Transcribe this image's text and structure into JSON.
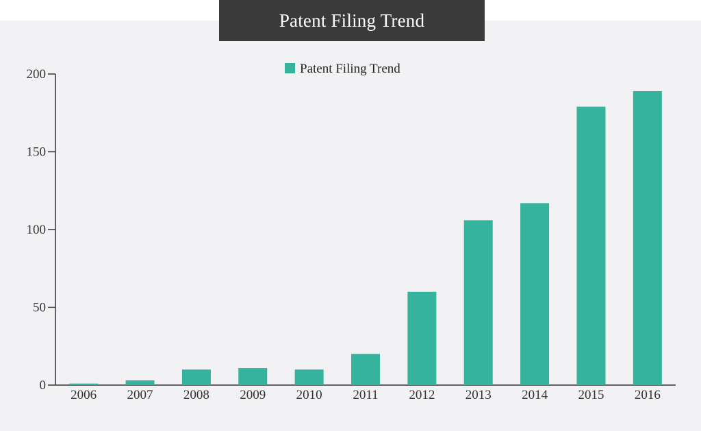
{
  "chart_data": {
    "type": "bar",
    "title": "Patent Filing Trend",
    "categories": [
      "2006",
      "2007",
      "2008",
      "2009",
      "2010",
      "2011",
      "2012",
      "2013",
      "2014",
      "2015",
      "2016"
    ],
    "series": [
      {
        "name": "Patent Filing Trend",
        "values": [
          1,
          3,
          10,
          11,
          10,
          20,
          60,
          106,
          117,
          179,
          189
        ],
        "color": "#36b39c"
      }
    ],
    "yticks": [
      "0",
      "50",
      "100",
      "150",
      "200"
    ],
    "ylim": [
      0,
      200
    ],
    "xlabel": "",
    "ylabel": "",
    "grid": false,
    "legend_position": "top-center"
  }
}
